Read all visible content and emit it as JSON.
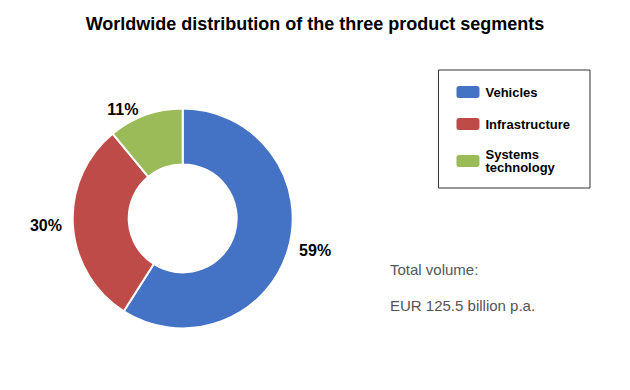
{
  "chart_data": {
    "type": "pie",
    "title": "Worldwide distribution of the three product segments",
    "categories": [
      "Vehicles",
      "Infrastructure",
      "Systems\ntechnology"
    ],
    "values": [
      59,
      30,
      11
    ],
    "value_labels": [
      "59%",
      "30%",
      "11%"
    ],
    "colors": [
      "#4472C4",
      "#BE4B48",
      "#9BBB59"
    ],
    "data_labels": true,
    "legend": "right",
    "annotations": [
      "Total volume:",
      "EUR 125.5 billion p.a."
    ]
  }
}
